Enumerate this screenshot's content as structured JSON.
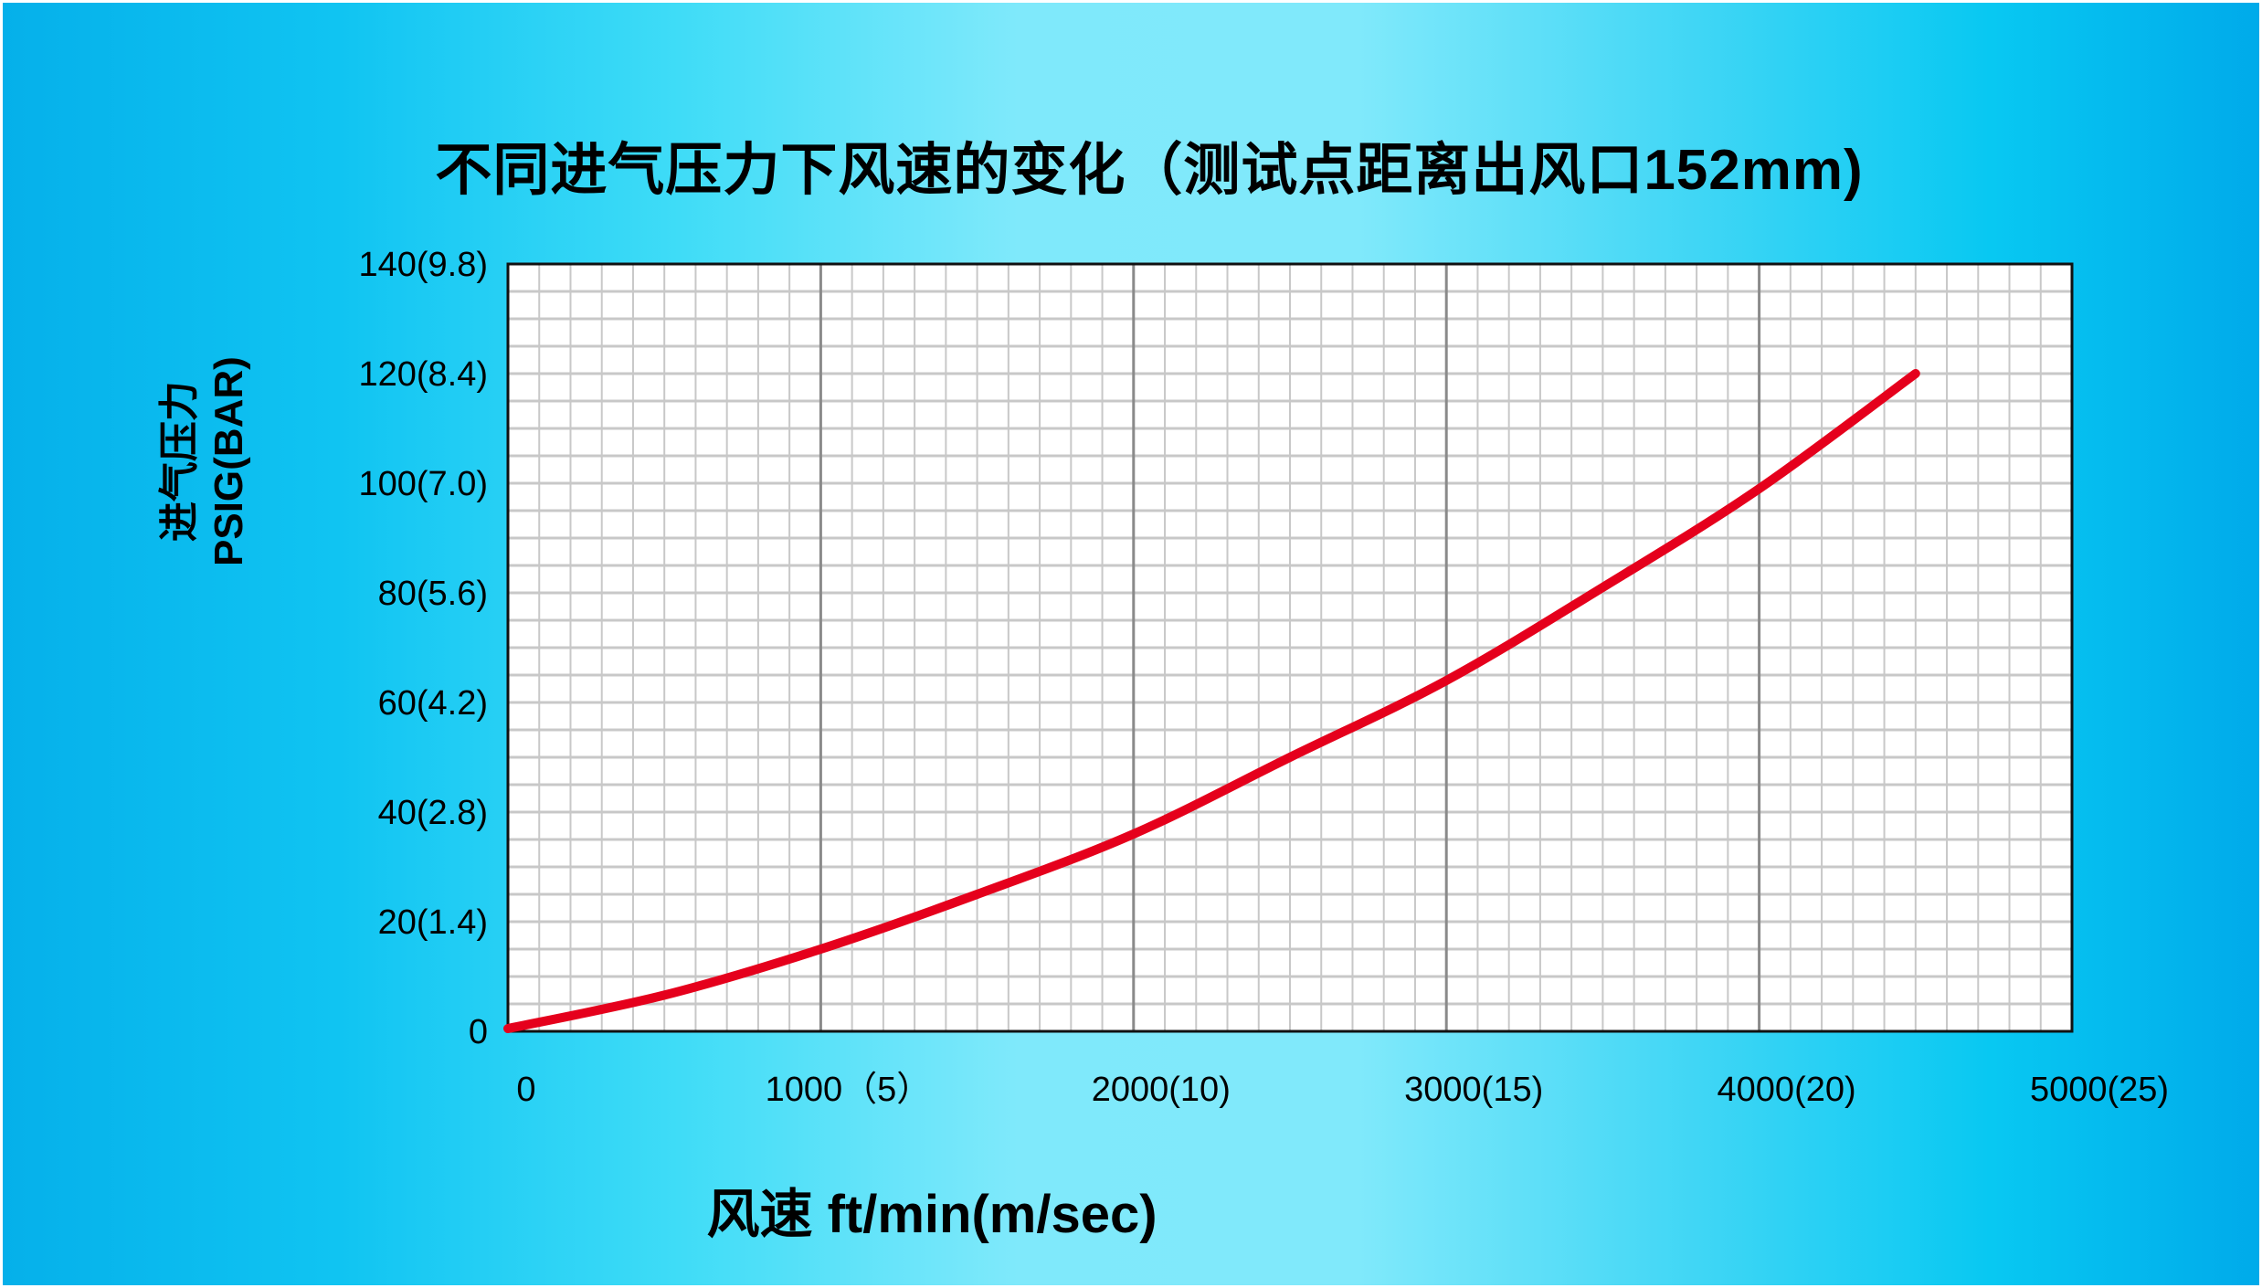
{
  "chart_data": {
    "type": "line",
    "title": "不同进气压力下风速的变化（测试点距离出风口152mm)",
    "xlabel": "风速 ft/min(m/sec)",
    "ylabel": [
      "进气压力",
      "PSIG(BAR)"
    ],
    "xlim": [
      0,
      5000
    ],
    "ylim": [
      0,
      140
    ],
    "x_ticks": [
      0,
      1000,
      2000,
      3000,
      4000,
      5000
    ],
    "x_tick_labels": [
      "0",
      "1000（5）",
      "2000(10)",
      "3000(15)",
      "4000(20)",
      "5000(25)"
    ],
    "y_ticks": [
      0,
      20,
      40,
      60,
      80,
      100,
      120,
      140
    ],
    "y_tick_labels": [
      "0",
      "20(1.4)",
      "40(2.8)",
      "60(4.2)",
      "80(5.6)",
      "100(7.0)",
      "120(8.4)",
      "140(9.8)"
    ],
    "grid": true,
    "series": [
      {
        "color": "#e5001c",
        "x": [
          0,
          500,
          1000,
          1500,
          2000,
          2500,
          3000,
          3500,
          4000,
          4500
        ],
        "y": [
          0.5,
          6.6,
          15,
          25,
          36,
          50,
          64,
          81,
          99,
          120
        ]
      }
    ]
  }
}
